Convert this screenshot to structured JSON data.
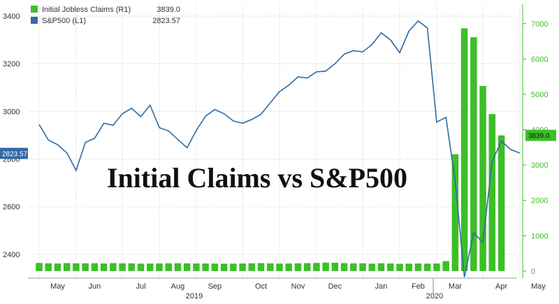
{
  "chart_data": {
    "type": "bar+line",
    "title": "Initial Claims vs S&P500",
    "legend": {
      "placement": "top-left",
      "items": [
        {
          "label": "Initial Jobless Claims (R1)",
          "value": "3839.0",
          "color": "#3dbe29"
        },
        {
          "label": "S&P500 (L1)",
          "value": "2823.57",
          "color": "#2f6aa4"
        }
      ]
    },
    "left_axis": {
      "series": "S&P500",
      "ticks": [
        "3400",
        "3200",
        "3000",
        "2800",
        "2600",
        "2400"
      ],
      "range": [
        2300,
        3450
      ]
    },
    "right_axis": {
      "series": "Initial Jobless Claims",
      "ticks": [
        "7000",
        "6000",
        "5000",
        "4000",
        "3000",
        "2000",
        "1000",
        "0"
      ],
      "range": [
        -200,
        7550
      ]
    },
    "x_axis": {
      "months": [
        "May",
        "Jun",
        "Jul",
        "Aug",
        "Sep",
        "Oct",
        "Nov",
        "Dec",
        "Jan",
        "Feb",
        "Mar",
        "Apr",
        "May"
      ],
      "years": [
        "2019",
        "2020"
      ]
    },
    "last_value_labels": {
      "left": "2823.57",
      "right": "3839.0"
    },
    "grid": true,
    "series": [
      {
        "name": "Initial Jobless Claims",
        "type": "bar",
        "axis": "right",
        "color": "#3dbe29",
        "values": [
          230,
          220,
          215,
          225,
          220,
          220,
          222,
          215,
          225,
          220,
          218,
          210,
          212,
          215,
          220,
          222,
          218,
          216,
          215,
          212,
          210,
          210,
          215,
          220,
          225,
          218,
          212,
          215,
          220,
          225,
          230,
          240,
          235,
          225,
          218,
          220,
          210,
          222,
          215,
          205,
          210,
          215,
          210,
          215,
          282,
          3307,
          6867,
          6615,
          5237,
          4442,
          3839
        ]
      },
      {
        "name": "S&P500",
        "type": "line",
        "axis": "left",
        "color": "#2f6aa4",
        "values": [
          2945,
          2880,
          2860,
          2826,
          2752,
          2870,
          2887,
          2950,
          2942,
          2990,
          3013,
          2978,
          3026,
          2932,
          2918,
          2882,
          2847,
          2920,
          2980,
          3008,
          2990,
          2960,
          2950,
          2966,
          2988,
          3036,
          3083,
          3110,
          3145,
          3140,
          3166,
          3169,
          3200,
          3240,
          3255,
          3250,
          3280,
          3330,
          3300,
          3246,
          3337,
          3380,
          3350,
          2955,
          2975,
          2710,
          2304,
          2490,
          2450,
          2790,
          2875,
          2840,
          2825
        ]
      }
    ]
  }
}
